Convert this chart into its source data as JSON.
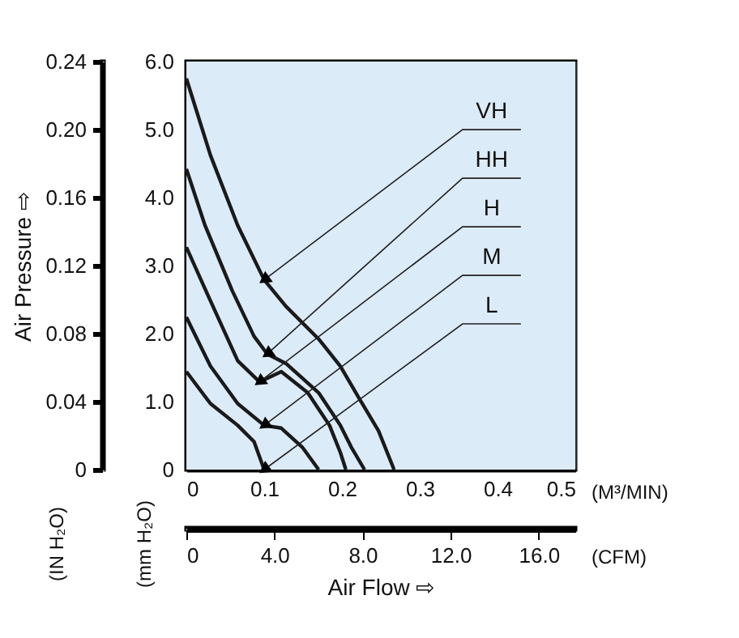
{
  "chart_data": {
    "type": "line",
    "xlabel": "(M³/MIN)",
    "ylabel": "(mm H₂O)",
    "y2label": "(IN H₂O)",
    "x2label": "(CFM)",
    "annotations": [
      "Air Pressure ⇨",
      "Air Flow ⇨"
    ],
    "series": [
      {
        "name": "VH",
        "color": "#1a1a1a",
        "x": [
          0,
          0.031,
          0.066,
          0.1,
          0.128,
          0.17,
          0.198,
          0.222,
          0.247,
          0.267
        ],
        "values": [
          5.75,
          4.62,
          3.59,
          2.79,
          2.4,
          1.92,
          1.52,
          1.05,
          0.57,
          0
        ]
      },
      {
        "name": "HH",
        "color": "#1a1a1a",
        "x": [
          0,
          0.024,
          0.059,
          0.087,
          0.104,
          0.128,
          0.17,
          0.198,
          0.212,
          0.229
        ],
        "values": [
          4.42,
          3.59,
          2.63,
          1.96,
          1.7,
          1.56,
          1.13,
          0.65,
          0.33,
          0
        ]
      },
      {
        "name": "H",
        "color": "#1a1a1a",
        "x": [
          0,
          0.031,
          0.066,
          0.094,
          0.122,
          0.156,
          0.184,
          0.198,
          0.205
        ],
        "values": [
          3.27,
          2.48,
          1.6,
          1.29,
          1.44,
          1.13,
          0.65,
          0.25,
          0
        ]
      },
      {
        "name": "M",
        "color": "#1a1a1a",
        "x": [
          0,
          0.031,
          0.066,
          0.1,
          0.122,
          0.149,
          0.17
        ],
        "values": [
          2.24,
          1.52,
          0.97,
          0.65,
          0.61,
          0.33,
          0
        ]
      },
      {
        "name": "L",
        "color": "#1a1a1a",
        "x": [
          0,
          0.031,
          0.066,
          0.087,
          0.1
        ],
        "values": [
          1.44,
          0.97,
          0.65,
          0.41,
          0
        ]
      }
    ],
    "xlim": [
      0,
      0.5
    ],
    "xticks": [
      {
        "value": 0,
        "label": "0"
      },
      0.1,
      0.2,
      0.3,
      0.4,
      0.5
    ],
    "ylim": [
      0,
      6
    ],
    "yticks": [
      {
        "value": 0,
        "label": "0"
      },
      {
        "value": 1,
        "label": "1.0"
      },
      {
        "value": 2,
        "label": "2.0"
      },
      {
        "value": 3,
        "label": "3.0"
      },
      {
        "value": 4,
        "label": "4.0"
      },
      {
        "value": 5,
        "label": "5.0"
      },
      {
        "value": 6,
        "label": "6.0"
      }
    ],
    "y2lim": [
      0,
      0.24
    ],
    "y2ticks": [
      {
        "value": 0,
        "label": "0"
      },
      0.04,
      0.08,
      0.12,
      0.16,
      {
        "value": 0.2,
        "label": "0.20"
      },
      0.24
    ],
    "x2lim": [
      0,
      17.66
    ],
    "x2ticks": [
      {
        "value": 0,
        "label": "0"
      },
      {
        "value": 4,
        "label": "4.0"
      },
      {
        "value": 8,
        "label": "8.0"
      },
      {
        "value": 12,
        "label": "12.0"
      },
      {
        "value": 16,
        "label": "16.0"
      }
    ],
    "grid": true,
    "legend": false,
    "marker": "none",
    "line_style": "solid"
  }
}
